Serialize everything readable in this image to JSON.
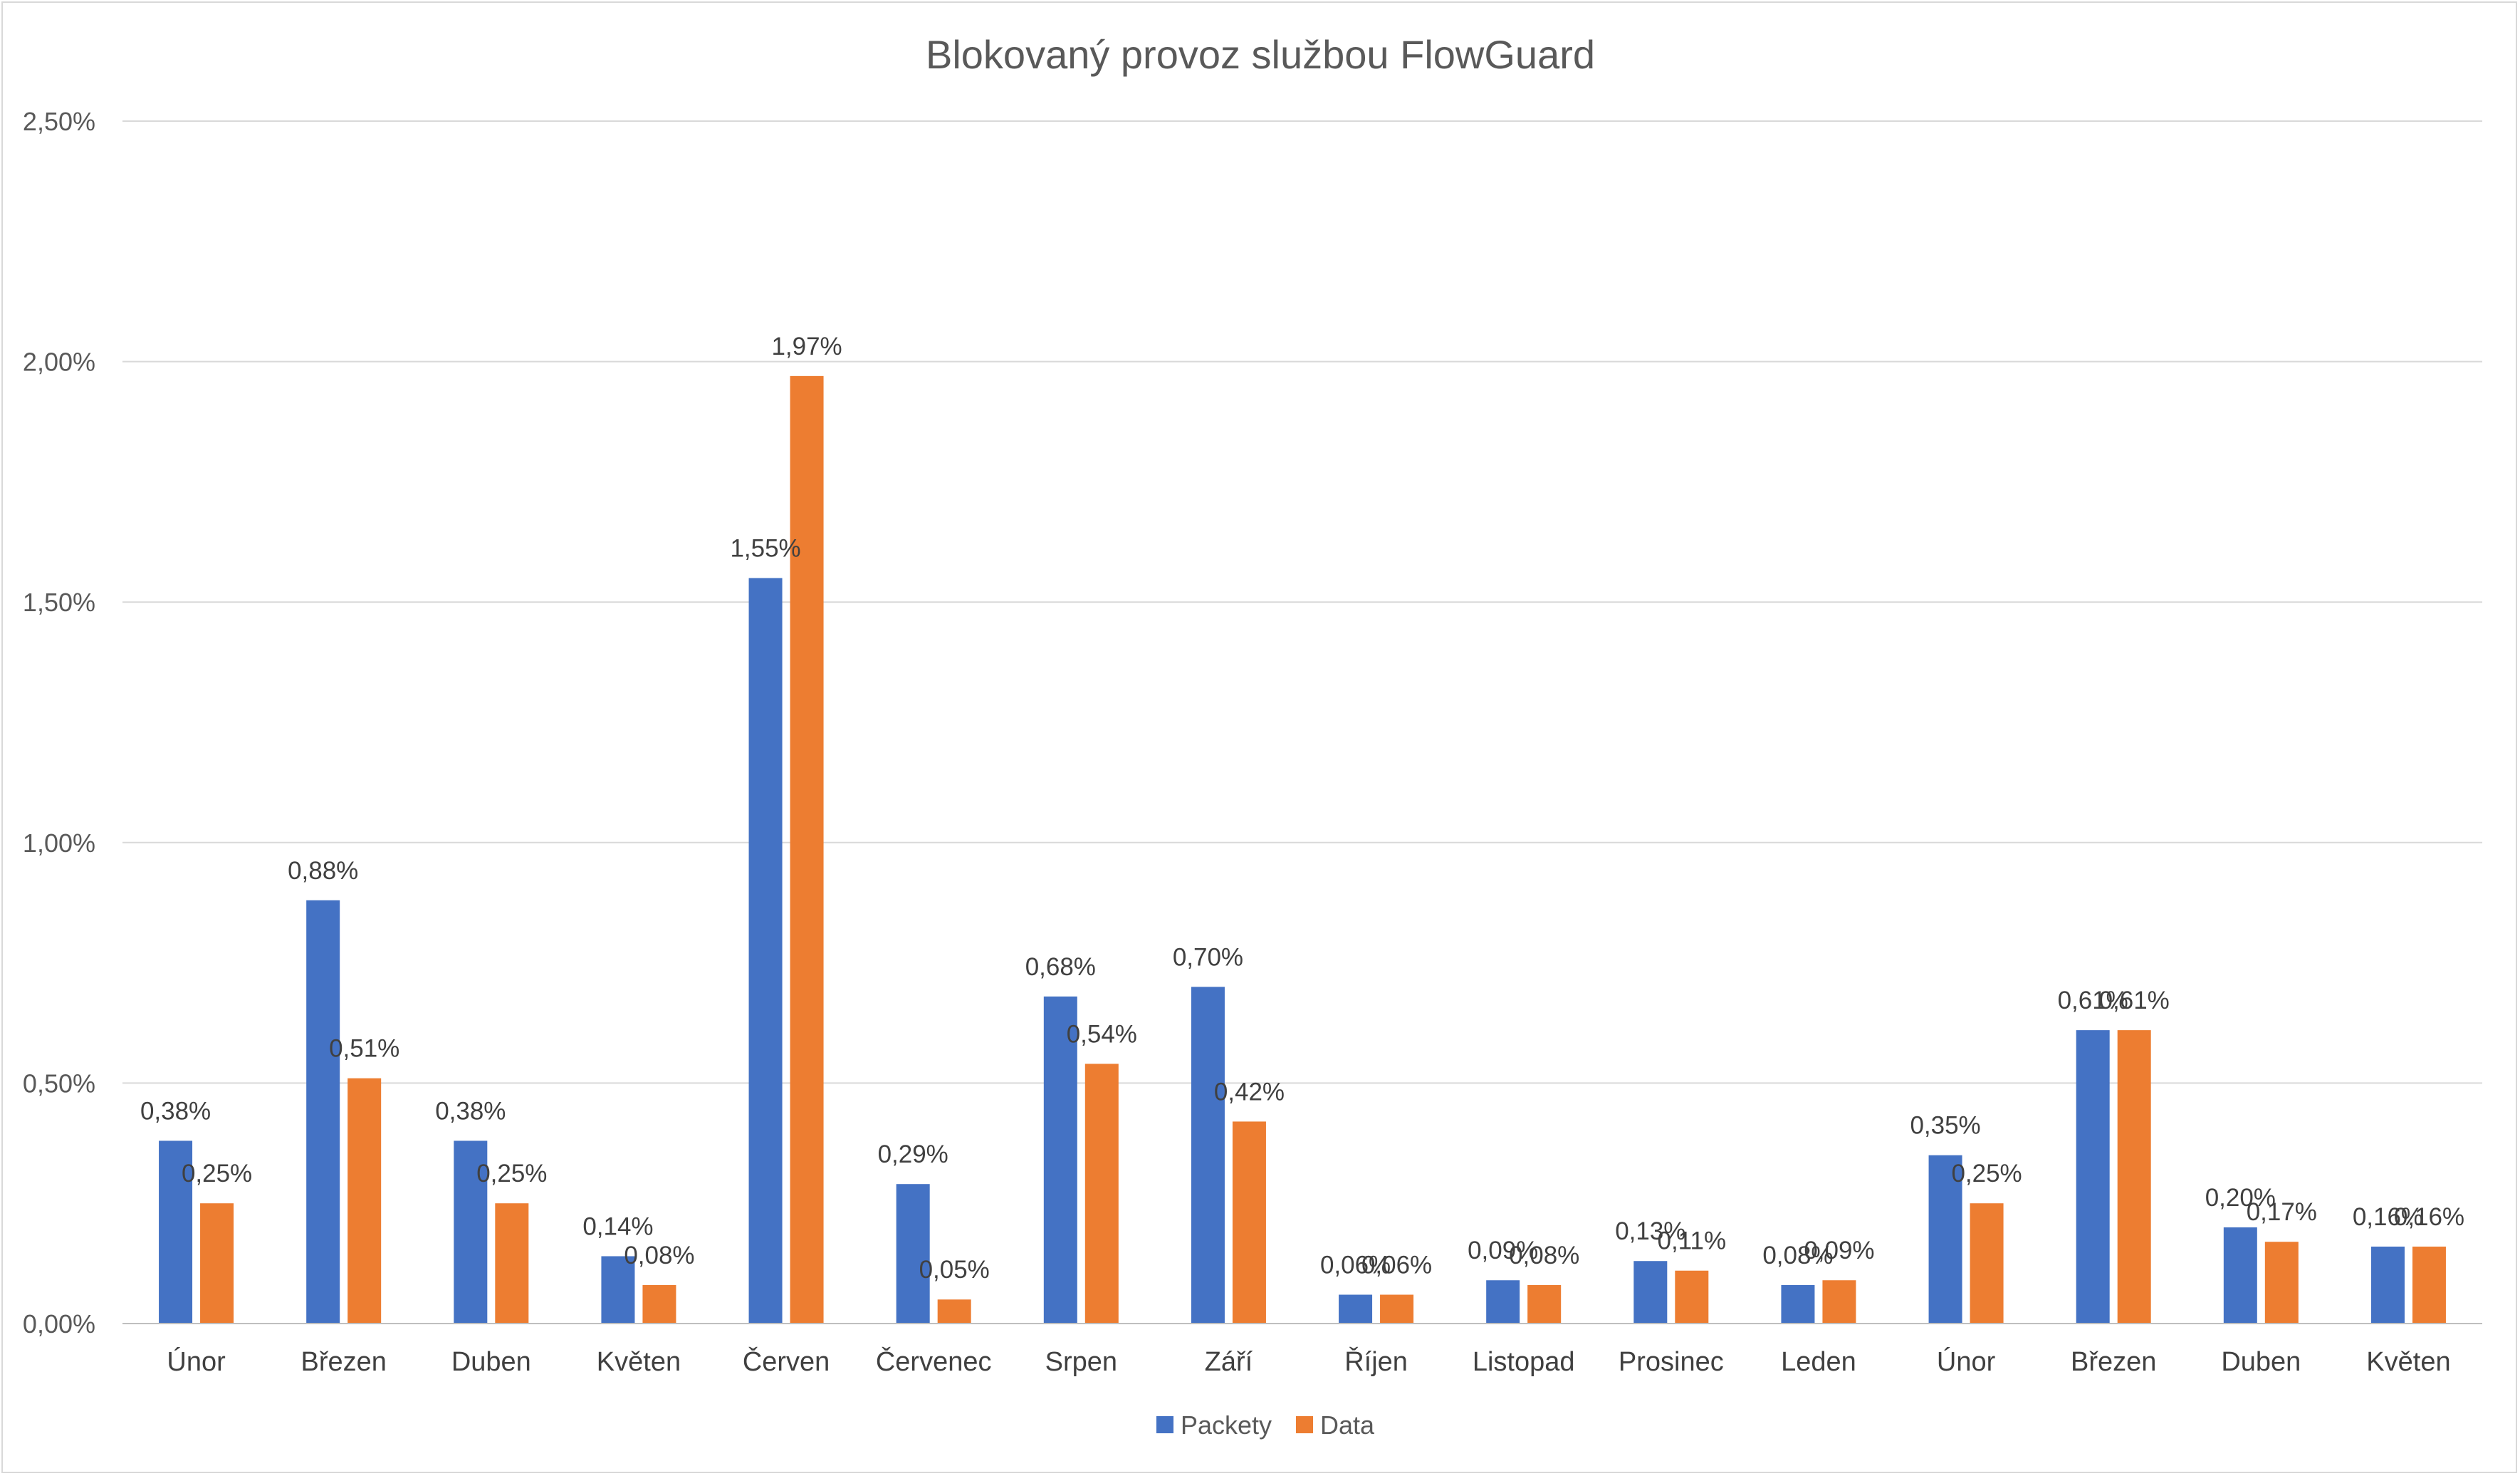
{
  "chart_data": {
    "type": "bar",
    "title": "Blokovaný provoz službou FlowGuard",
    "xlabel": "",
    "ylabel": "",
    "categories": [
      "Únor",
      "Březen",
      "Duben",
      "Květen",
      "Červen",
      "Červenec",
      "Srpen",
      "Září",
      "Říjen",
      "Listopad",
      "Prosinec",
      "Leden",
      "Únor",
      "Březen",
      "Duben",
      "Květen"
    ],
    "series": [
      {
        "name": "Packety",
        "color": "#4472c4",
        "values": [
          0.38,
          0.88,
          0.38,
          0.14,
          1.55,
          0.29,
          0.68,
          0.7,
          0.06,
          0.09,
          0.13,
          0.08,
          0.35,
          0.61,
          0.2,
          0.16
        ],
        "labels": [
          "0,38%",
          "0,88%",
          "0,38%",
          "0,14%",
          "1,55%",
          "0,29%",
          "0,68%",
          "0,70%",
          "0,06%",
          "0,09%",
          "0,13%",
          "0,08%",
          "0,35%",
          "0,61%",
          "0,20%",
          "0,16%"
        ]
      },
      {
        "name": "Data",
        "color": "#ed7d31",
        "values": [
          0.25,
          0.51,
          0.25,
          0.08,
          1.97,
          0.05,
          0.54,
          0.42,
          0.06,
          0.08,
          0.11,
          0.09,
          0.25,
          0.61,
          0.17,
          0.16
        ],
        "labels": [
          "0,25%",
          "0,51%",
          "0,25%",
          "0,08%",
          "1,97%",
          "0,05%",
          "0,54%",
          "0,42%",
          "0,06%",
          "0,08%",
          "0,11%",
          "0,09%",
          "0,25%",
          "0,61%",
          "0,17%",
          "0,16%"
        ]
      }
    ],
    "yticks": [
      0,
      0.5,
      1.0,
      1.5,
      2.0,
      2.5
    ],
    "ytick_labels": [
      "0,00%",
      "0,50%",
      "1,00%",
      "1,50%",
      "2,00%",
      "2,50%"
    ],
    "ylim": [
      0,
      2.5
    ],
    "grid": true,
    "legend_position": "bottom",
    "gridline_color": "#d9d9d9"
  }
}
